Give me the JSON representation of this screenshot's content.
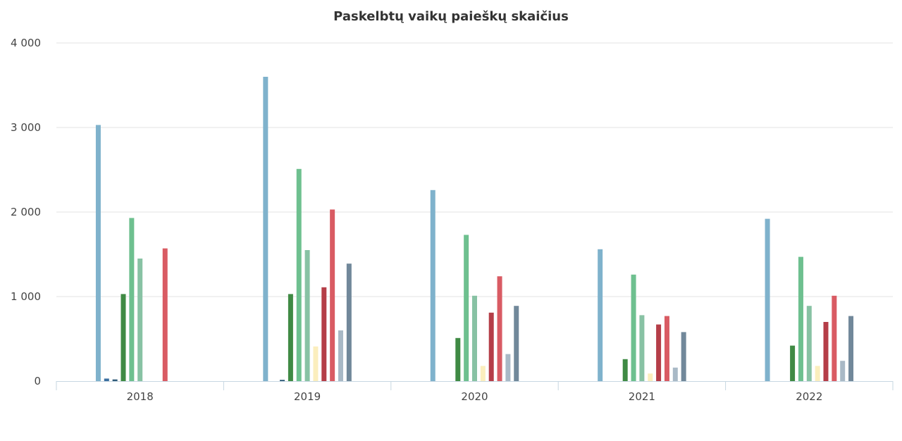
{
  "chart_data": {
    "type": "bar",
    "title": "Paskelbtų vaikų paieškų skaičius",
    "xlabel": "",
    "ylabel": "",
    "ylim": [
      0,
      4000
    ],
    "yticks": [
      0,
      1000,
      2000,
      3000,
      4000
    ],
    "ytick_labels": [
      "0",
      "1 000",
      "2 000",
      "3 000",
      "4 000"
    ],
    "categories": [
      "2018",
      "2019",
      "2020",
      "2021",
      "2022"
    ],
    "grid": true,
    "legend": "none",
    "series": [
      {
        "color": "#7fb2cc",
        "values": [
          3030,
          3600,
          2260,
          1560,
          1920
        ]
      },
      {
        "color": "#3b6fa0",
        "values": [
          30,
          0,
          0,
          0,
          0
        ]
      },
      {
        "color": "#2f5b78",
        "values": [
          20,
          15,
          0,
          0,
          0
        ]
      },
      {
        "color": "#3f8a44",
        "values": [
          1030,
          1030,
          510,
          260,
          420
        ]
      },
      {
        "color": "#6ec08f",
        "values": [
          1930,
          2510,
          1730,
          1260,
          1470
        ]
      },
      {
        "color": "#88c2a4",
        "values": [
          1450,
          1550,
          1010,
          780,
          890
        ]
      },
      {
        "color": "#fbeebd",
        "values": [
          0,
          410,
          180,
          90,
          180
        ]
      },
      {
        "color": "#b53e48",
        "values": [
          0,
          1110,
          810,
          670,
          700
        ]
      },
      {
        "color": "#d95b63",
        "values": [
          1570,
          2030,
          1240,
          770,
          1010
        ]
      },
      {
        "color": "#a9b9c6",
        "values": [
          0,
          600,
          320,
          160,
          240
        ]
      },
      {
        "color": "#71889a",
        "values": [
          0,
          1390,
          890,
          580,
          770
        ]
      }
    ]
  }
}
